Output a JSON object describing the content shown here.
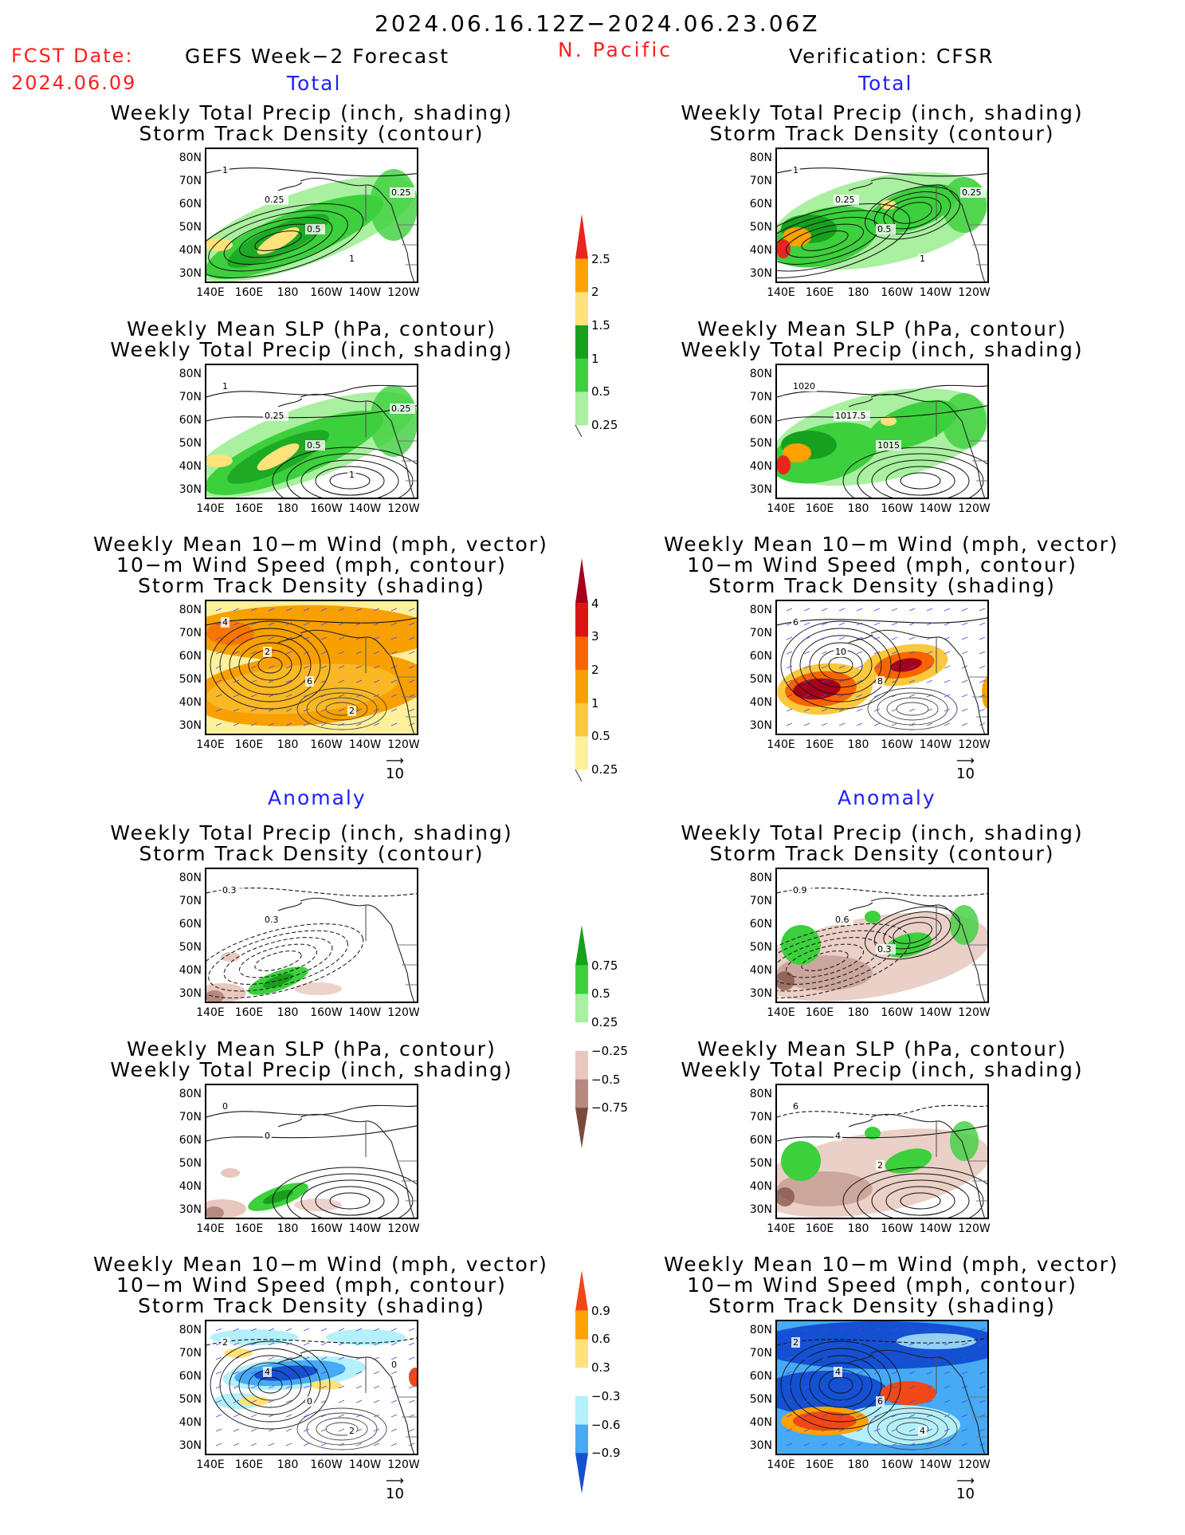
{
  "header": {
    "date_range": "2024.06.16.12Z−2024.06.23.06Z",
    "fcst_label": "FCST Date:",
    "fcst_date": "2024.06.09",
    "left_title": "GEFS Week−2 Forecast",
    "region": "N. Pacific",
    "right_title": "Verification: CFSR"
  },
  "sections": {
    "total": "Total",
    "anomaly": "Anomaly"
  },
  "panel_titles": {
    "precip_track": [
      "Weekly Total Precip (inch, shading)",
      "Storm Track Density (contour)"
    ],
    "slp_precip": [
      "Weekly Mean SLP (hPa, contour)",
      "Weekly Total Precip (inch, shading)"
    ],
    "wind": [
      "Weekly Mean 10−m Wind (mph, vector)",
      "10−m Wind Speed (mph, contour)",
      "Storm Track Density (shading)"
    ]
  },
  "axes": {
    "lat_ticks": [
      "80N",
      "70N",
      "60N",
      "50N",
      "40N",
      "30N"
    ],
    "lon_ticks": [
      "140E",
      "160E",
      "180",
      "160W",
      "140W",
      "120W"
    ]
  },
  "vector_ref": "10",
  "map_labels": {
    "f_precip": [
      "1",
      "0.25",
      "0.5",
      "1",
      "0.25"
    ],
    "v_slp": [
      "1020",
      "1017.5",
      "1015"
    ],
    "f_wind": [
      "4",
      "2",
      "6",
      "2"
    ],
    "v_wind": [
      "6",
      "10",
      "8"
    ],
    "f_precip_anom": [
      "0.3",
      "0.3"
    ],
    "v_precip_anom": [
      "0.9",
      "0.6",
      "0.3"
    ],
    "f_slp_anom": [
      "0",
      "0"
    ],
    "v_slp_anom": [
      "6",
      "4",
      "2"
    ],
    "f_wind_anom": [
      "2",
      "4",
      "0",
      "2",
      "0"
    ],
    "v_wind_anom": [
      "2",
      "4",
      "6",
      "4"
    ]
  },
  "colorbars": {
    "precip_total": {
      "labels": [
        "2.5",
        "2",
        "1.5",
        "1",
        "0.5",
        "0.25"
      ],
      "colors": [
        "#e8261e",
        "#ffa100",
        "#ffe27a",
        "#17a01e",
        "#3cd03c",
        "#a9f0a0"
      ]
    },
    "track_total": {
      "labels": [
        "4",
        "3",
        "2",
        "1",
        "0.5",
        "0.25"
      ],
      "colors": [
        "#a4001c",
        "#dc1414",
        "#f86400",
        "#f8a000",
        "#fac83c",
        "#fcf09a"
      ]
    },
    "precip_anom": {
      "labels": [
        "0.75",
        "0.5",
        "0.25",
        "−0.25",
        "−0.5",
        "−0.75"
      ],
      "colors": [
        "#17a01e",
        "#3cd03c",
        "#a9f0a0",
        "#ffffff",
        "#e8c8be",
        "#b58a80",
        "#7a4a3c"
      ]
    },
    "track_anom": {
      "labels": [
        "0.9",
        "0.6",
        "0.3",
        "−0.3",
        "−0.6",
        "−0.9"
      ],
      "colors": [
        "#f04818",
        "#ffa100",
        "#ffe27a",
        "#ffffff",
        "#b4f0fa",
        "#46aaf5",
        "#1450d2"
      ]
    }
  }
}
